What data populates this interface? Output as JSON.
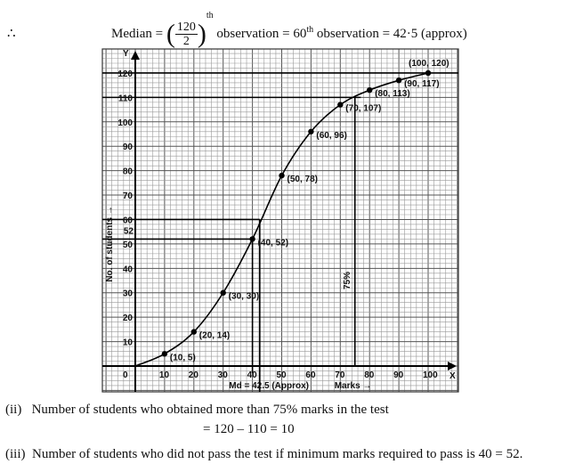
{
  "heading": {
    "therefore": "∴",
    "median_label": "Median",
    "eq1": "=",
    "frac_num": "120",
    "frac_den": "2",
    "sup_th": "th",
    "text1": "observation = 60",
    "sup_th2": "th",
    "text2": "observation = 42·5 (approx)"
  },
  "answers": {
    "ii_num": "(ii)",
    "ii_text": "Number of students who obtained more than 75% marks in the test",
    "ii_calc": "= 120 – 110 = 10",
    "iii_num": "(iii)",
    "iii_text": "Number of students who did not pass the test if minimum marks required to pass is 40 = 52."
  },
  "chart_data": {
    "type": "line",
    "title": "",
    "xlabel": "Marks →",
    "ylabel": "No. of students →",
    "x_axis_letter": "X",
    "y_axis_letter": "Y",
    "origin_label": "0",
    "xlim": [
      0,
      100
    ],
    "ylim": [
      0,
      120
    ],
    "xticks": [
      "10",
      "20",
      "30",
      "40",
      "50",
      "60",
      "70",
      "80",
      "90",
      "100"
    ],
    "yticks": [
      "10",
      "20",
      "30",
      "40",
      "50",
      "60",
      "70",
      "80",
      "90",
      "100",
      "110",
      "120"
    ],
    "grid": true,
    "points": [
      {
        "x": 10,
        "y": 5,
        "label": "(10, 5)"
      },
      {
        "x": 20,
        "y": 14,
        "label": "(20, 14)"
      },
      {
        "x": 30,
        "y": 30,
        "label": "(30, 30)"
      },
      {
        "x": 40,
        "y": 52,
        "label": "(40, 52)"
      },
      {
        "x": 50,
        "y": 78,
        "label": "(50, 78)"
      },
      {
        "x": 60,
        "y": 96,
        "label": "(60, 96)"
      },
      {
        "x": 70,
        "y": 107,
        "label": "(70, 107)"
      },
      {
        "x": 80,
        "y": 113,
        "label": "(80, 113)"
      },
      {
        "x": 90,
        "y": 117,
        "label": "(90, 117)"
      },
      {
        "x": 100,
        "y": 120,
        "label": "(100, 120)"
      }
    ],
    "annotations": {
      "median": "Md = 42.5 (Approx)",
      "median_x": 42.5,
      "median_y": 60,
      "pass_value": "52",
      "pass_x": 40,
      "pass_y": 52,
      "pct75": "75%",
      "pct75_x": 75,
      "pct75_y": 110
    }
  }
}
